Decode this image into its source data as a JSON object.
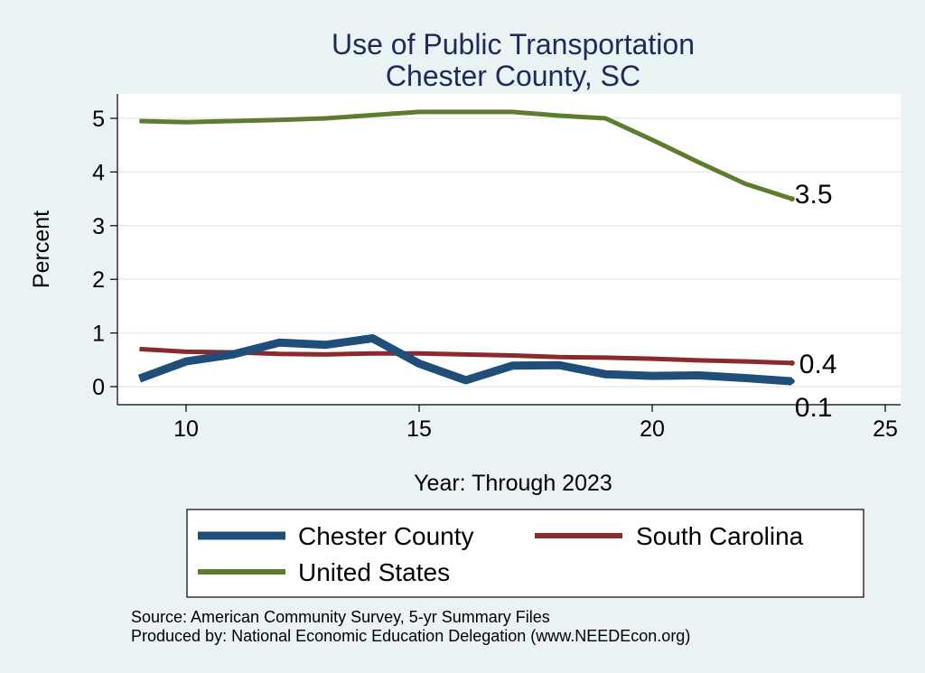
{
  "chart_data": {
    "type": "line",
    "title": "Use of Public Transportation",
    "subtitle": "Chester County, SC",
    "xlabel": "Year: Through 2023",
    "ylabel": "Percent",
    "xlim": [
      9,
      25
    ],
    "ylim": [
      0,
      5.2
    ],
    "xticks": [
      10,
      15,
      20,
      25
    ],
    "yticks": [
      0,
      1,
      2,
      3,
      4,
      5
    ],
    "grid": true,
    "legend_position": "bottom",
    "x": [
      9,
      10,
      11,
      12,
      13,
      14,
      15,
      16,
      17,
      18,
      19,
      20,
      21,
      22,
      23
    ],
    "series": [
      {
        "name": "Chester County",
        "color": "#1f4e79",
        "values": [
          0.15,
          0.47,
          0.6,
          0.82,
          0.78,
          0.9,
          0.43,
          0.12,
          0.39,
          0.4,
          0.23,
          0.2,
          0.21,
          0.16,
          0.1
        ],
        "end_label": "0.1"
      },
      {
        "name": "South Carolina",
        "color": "#8b2a2e",
        "values": [
          0.7,
          0.65,
          0.64,
          0.61,
          0.6,
          0.62,
          0.62,
          0.6,
          0.58,
          0.55,
          0.54,
          0.52,
          0.49,
          0.47,
          0.44
        ],
        "end_label": "0.4"
      },
      {
        "name": "United States",
        "color": "#5c7d2e",
        "values": [
          4.95,
          4.93,
          4.95,
          4.97,
          5.0,
          5.06,
          5.12,
          5.12,
          5.12,
          5.05,
          5.0,
          4.6,
          4.18,
          3.78,
          3.5
        ],
        "end_label": "3.5"
      }
    ],
    "legend": [
      "Chester County",
      "South Carolina",
      "United States"
    ],
    "notes": [
      "Source: American Community Survey, 5-yr Summary Files",
      "Produced by: National Economic Education Delegation (www.NEEDEcon.org)"
    ]
  }
}
